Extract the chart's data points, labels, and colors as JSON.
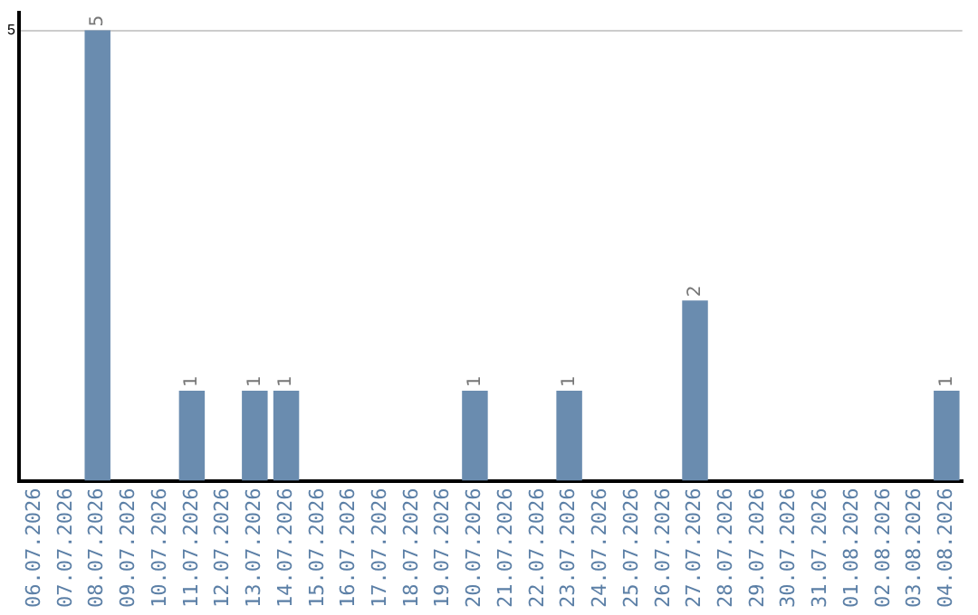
{
  "chart_data": {
    "type": "bar",
    "categories": [
      "06.07.2026",
      "07.07.2026",
      "08.07.2026",
      "09.07.2026",
      "10.07.2026",
      "11.07.2026",
      "12.07.2026",
      "13.07.2026",
      "14.07.2026",
      "15.07.2026",
      "16.07.2026",
      "17.07.2026",
      "18.07.2026",
      "19.07.2026",
      "20.07.2026",
      "21.07.2026",
      "22.07.2026",
      "23.07.2026",
      "24.07.2026",
      "25.07.2026",
      "26.07.2026",
      "27.07.2026",
      "28.07.2026",
      "29.07.2026",
      "30.07.2026",
      "31.07.2026",
      "01.08.2026",
      "02.08.2026",
      "03.08.2026",
      "04.08.2026"
    ],
    "values": [
      0,
      0,
      5,
      0,
      0,
      1,
      0,
      1,
      1,
      0,
      0,
      0,
      0,
      0,
      1,
      0,
      0,
      1,
      0,
      0,
      0,
      2,
      0,
      0,
      0,
      0,
      0,
      0,
      0,
      1
    ],
    "value_labels": [
      null,
      null,
      "5",
      null,
      null,
      "1",
      null,
      "1",
      "1",
      null,
      null,
      null,
      null,
      null,
      "1",
      null,
      null,
      "1",
      null,
      null,
      null,
      "2",
      null,
      null,
      null,
      null,
      null,
      null,
      null,
      "1"
    ],
    "color": "#6a8caf",
    "ylim": [
      0,
      5.2
    ],
    "yticks": [
      5
    ],
    "grid": "y",
    "legend": false
  }
}
